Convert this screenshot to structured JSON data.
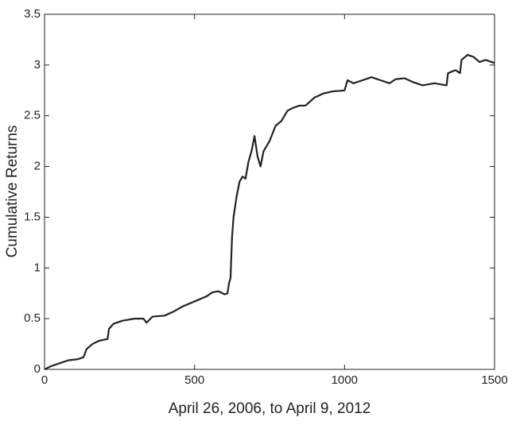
{
  "chart_data": {
    "type": "line",
    "xlabel": "April 26, 2006, to April 9, 2012",
    "ylabel": "Cumulative Returns",
    "x": [
      0,
      20,
      50,
      80,
      110,
      130,
      140,
      160,
      180,
      210,
      215,
      230,
      260,
      300,
      330,
      340,
      360,
      400,
      430,
      460,
      500,
      540,
      560,
      580,
      600,
      610,
      615,
      620,
      625,
      630,
      640,
      650,
      660,
      670,
      680,
      690,
      700,
      710,
      720,
      730,
      750,
      770,
      790,
      810,
      830,
      850,
      870,
      900,
      930,
      960,
      1000,
      1010,
      1030,
      1060,
      1090,
      1120,
      1150,
      1170,
      1200,
      1230,
      1260,
      1300,
      1340,
      1345,
      1370,
      1385,
      1390,
      1410,
      1430,
      1450,
      1470,
      1500
    ],
    "values": [
      0,
      0.03,
      0.06,
      0.09,
      0.1,
      0.12,
      0.2,
      0.25,
      0.28,
      0.3,
      0.4,
      0.45,
      0.48,
      0.5,
      0.5,
      0.46,
      0.52,
      0.53,
      0.57,
      0.62,
      0.67,
      0.72,
      0.76,
      0.77,
      0.74,
      0.75,
      0.85,
      0.9,
      1.3,
      1.5,
      1.7,
      1.85,
      1.9,
      1.88,
      2.05,
      2.15,
      2.3,
      2.1,
      2.0,
      2.15,
      2.25,
      2.4,
      2.45,
      2.55,
      2.58,
      2.6,
      2.6,
      2.68,
      2.72,
      2.74,
      2.75,
      2.85,
      2.82,
      2.85,
      2.88,
      2.85,
      2.82,
      2.86,
      2.87,
      2.83,
      2.8,
      2.82,
      2.8,
      2.92,
      2.95,
      2.92,
      3.05,
      3.1,
      3.08,
      3.03,
      3.05,
      3.02
    ],
    "color": "#222222",
    "xlim": [
      0,
      1500
    ],
    "xticks": [
      0,
      500,
      1000,
      1500
    ],
    "ylim": [
      0,
      3.5
    ],
    "yticks": [
      0,
      0.5,
      1,
      1.5,
      2,
      2.5,
      3,
      3.5
    ]
  }
}
